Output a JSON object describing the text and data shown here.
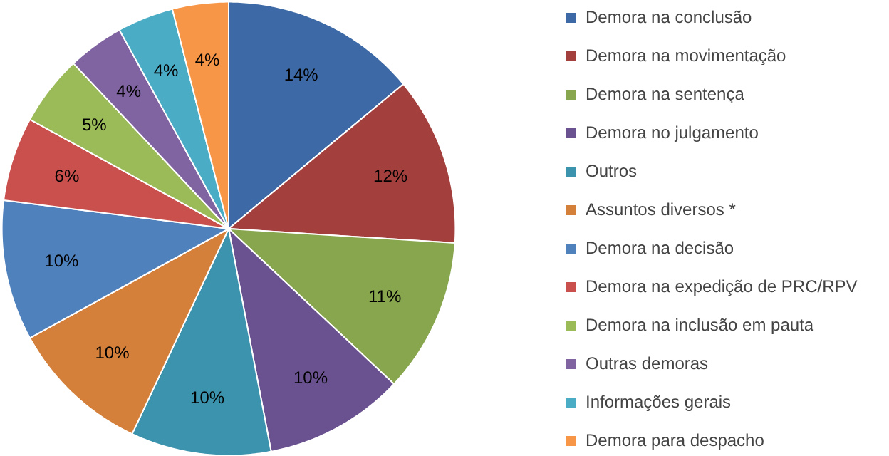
{
  "chart_data": {
    "type": "pie",
    "categories": [
      "Demora na conclusão",
      "Demora na movimentação",
      "Demora na sentença",
      "Demora no julgamento",
      "Outros",
      "Assuntos diversos *",
      "Demora na decisão",
      "Demora na expedição de PRC/RPV",
      "Demora na inclusão em pauta",
      "Outras demoras",
      "Informações gerais",
      "Demora para despacho"
    ],
    "values": [
      14,
      12,
      11,
      10,
      10,
      10,
      10,
      6,
      5,
      4,
      4,
      4
    ],
    "value_labels": [
      "14%",
      "12%",
      "11%",
      "10%",
      "10%",
      "10%",
      "10%",
      "6%",
      "5%",
      "4%",
      "4%",
      "4%"
    ],
    "colors": [
      "#3d6aa6",
      "#a3403d",
      "#87a64d",
      "#6a5290",
      "#3c93ad",
      "#d4803b",
      "#4f81bd",
      "#c9504c",
      "#9bbb59",
      "#8064a2",
      "#4bacc6",
      "#f79646"
    ],
    "legend": "right"
  }
}
